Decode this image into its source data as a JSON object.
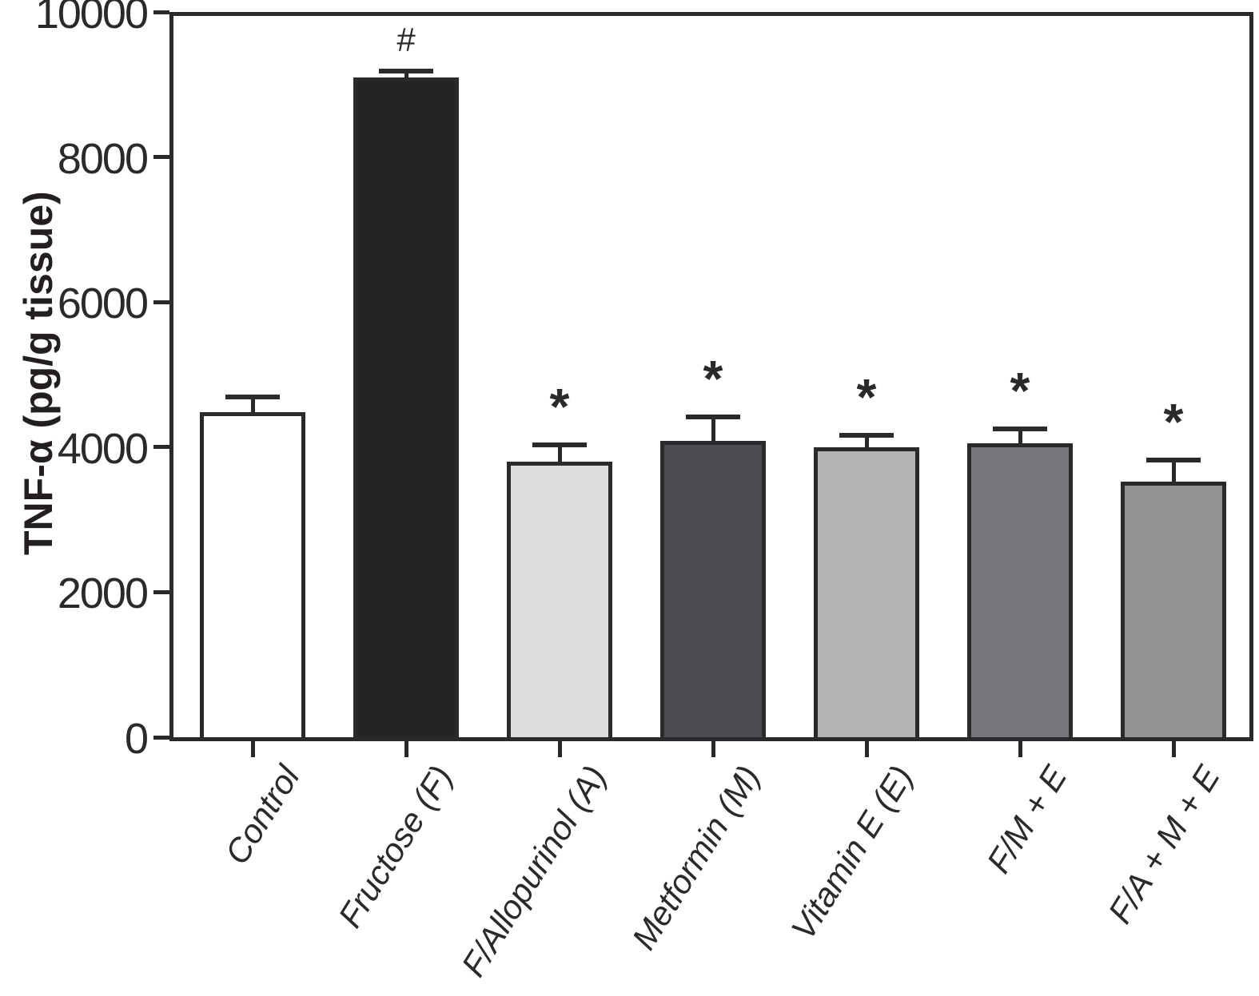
{
  "chart_data": {
    "type": "bar",
    "title": "",
    "xlabel": "",
    "ylabel": "TNF-α (pg/g tissue)",
    "ylim": [
      0,
      10000
    ],
    "yticks": [
      0,
      2000,
      4000,
      6000,
      8000,
      10000
    ],
    "grid": false,
    "legend": "none",
    "categories": [
      "Control",
      "Fructose (F)",
      "F/Allopurinol (A)",
      "Metformin (M)",
      "Vitamin E (E)",
      "F/M + E",
      "F/A + M + E"
    ],
    "values": [
      4480,
      9100,
      3800,
      4090,
      4000,
      4050,
      3520
    ],
    "errors_plus": [
      210,
      80,
      230,
      330,
      160,
      200,
      300
    ],
    "significance_markers": [
      "",
      "#",
      "*",
      "*",
      "*",
      "*",
      "*"
    ],
    "bar_fill_colors": [
      "#ffffff",
      "#252325",
      "#dcdedd",
      "#4a4c4f",
      "#b1b3b5",
      "#75777a",
      "#929496"
    ],
    "bar_edge_color": "#2a2a2c",
    "axis_color": "#2a2a2c"
  }
}
